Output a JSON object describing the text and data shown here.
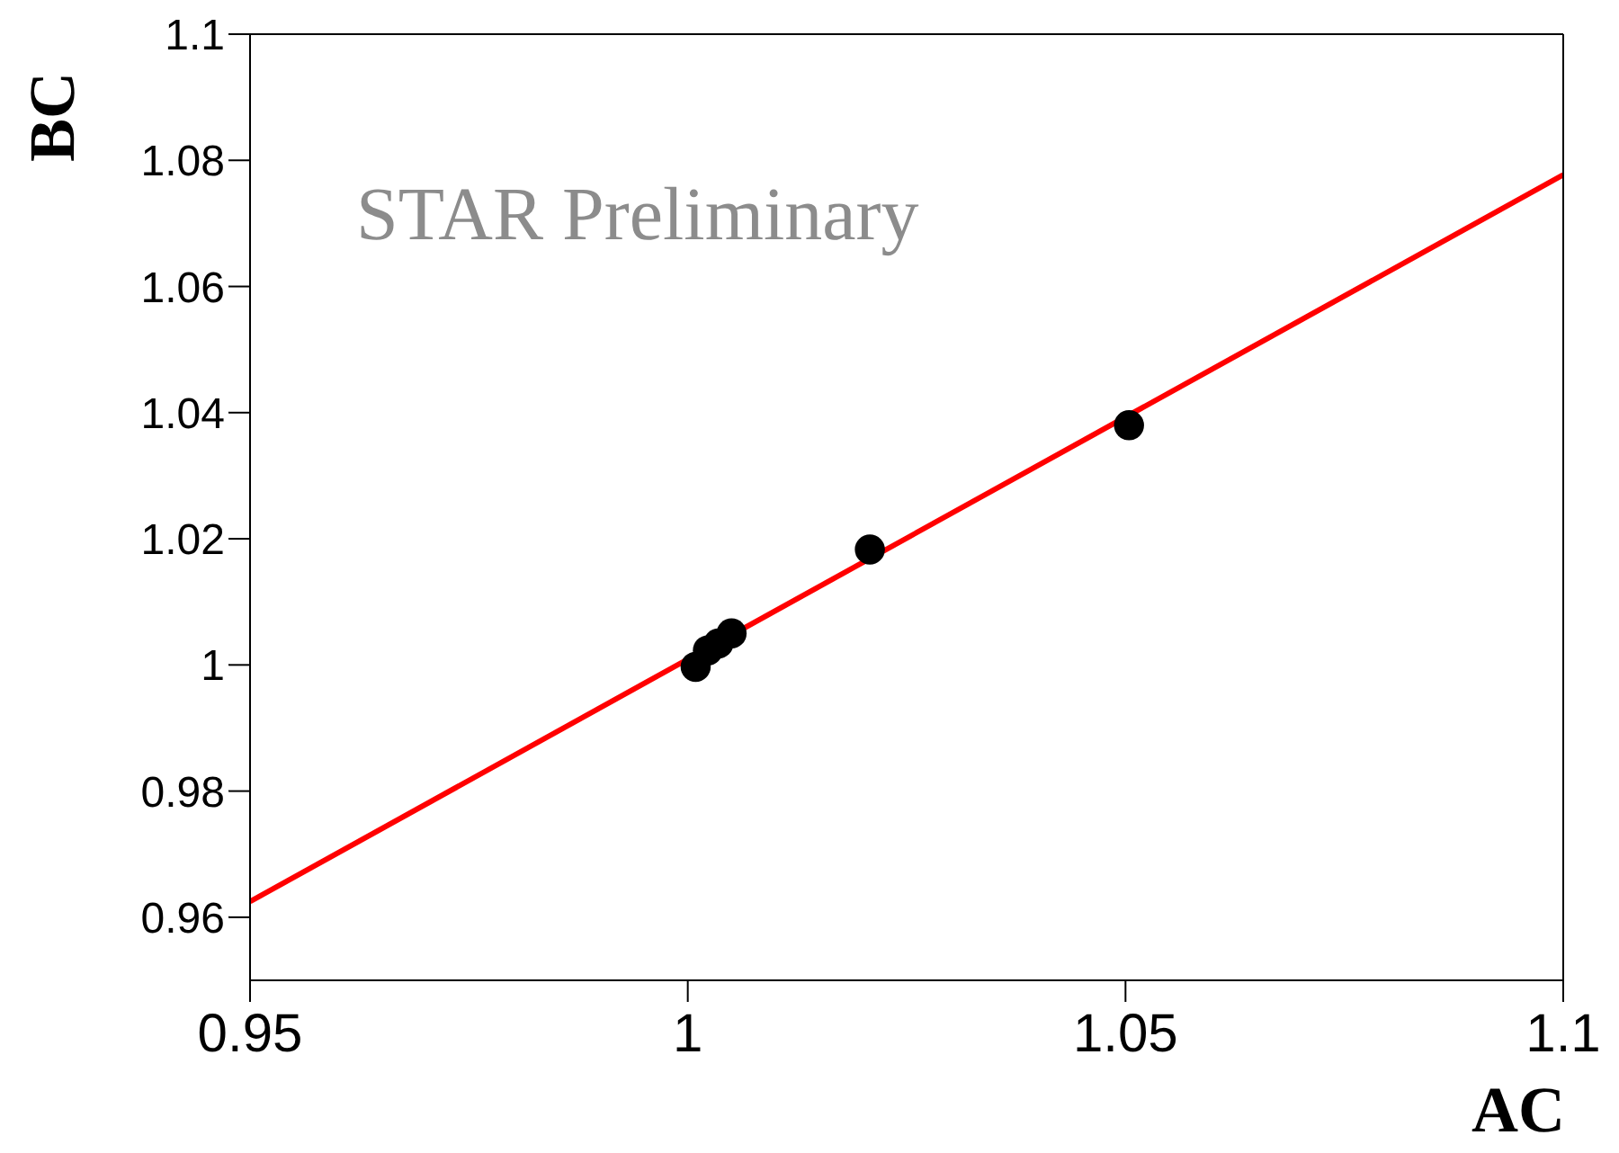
{
  "chart_data": {
    "type": "scatter",
    "xlabel": "AC",
    "ylabel": "BC",
    "annotations": [
      "STAR Preliminary"
    ],
    "xlim": [
      0.95,
      1.1
    ],
    "xticks": [
      0.95,
      1,
      1.05,
      1.1
    ],
    "ylim": [
      0.95,
      1.1
    ],
    "yticks": [
      0.96,
      0.98,
      1,
      1.02,
      1.04,
      1.06,
      1.08,
      1.1
    ],
    "grid": false,
    "marker": "circle",
    "series": [
      {
        "color": "#000000",
        "x": [
          1.0009,
          1.0023,
          1.0035,
          1.005,
          1.0208,
          1.0504
        ],
        "values": [
          0.9997,
          1.0023,
          1.0034,
          1.005,
          1.0183,
          1.038
        ]
      },
      {
        "type": "line",
        "color": "#ff0000",
        "marker": "none",
        "line_style": "solid",
        "x": [
          0.95,
          1.1
        ],
        "values": [
          0.9625,
          1.0777
        ]
      }
    ]
  }
}
